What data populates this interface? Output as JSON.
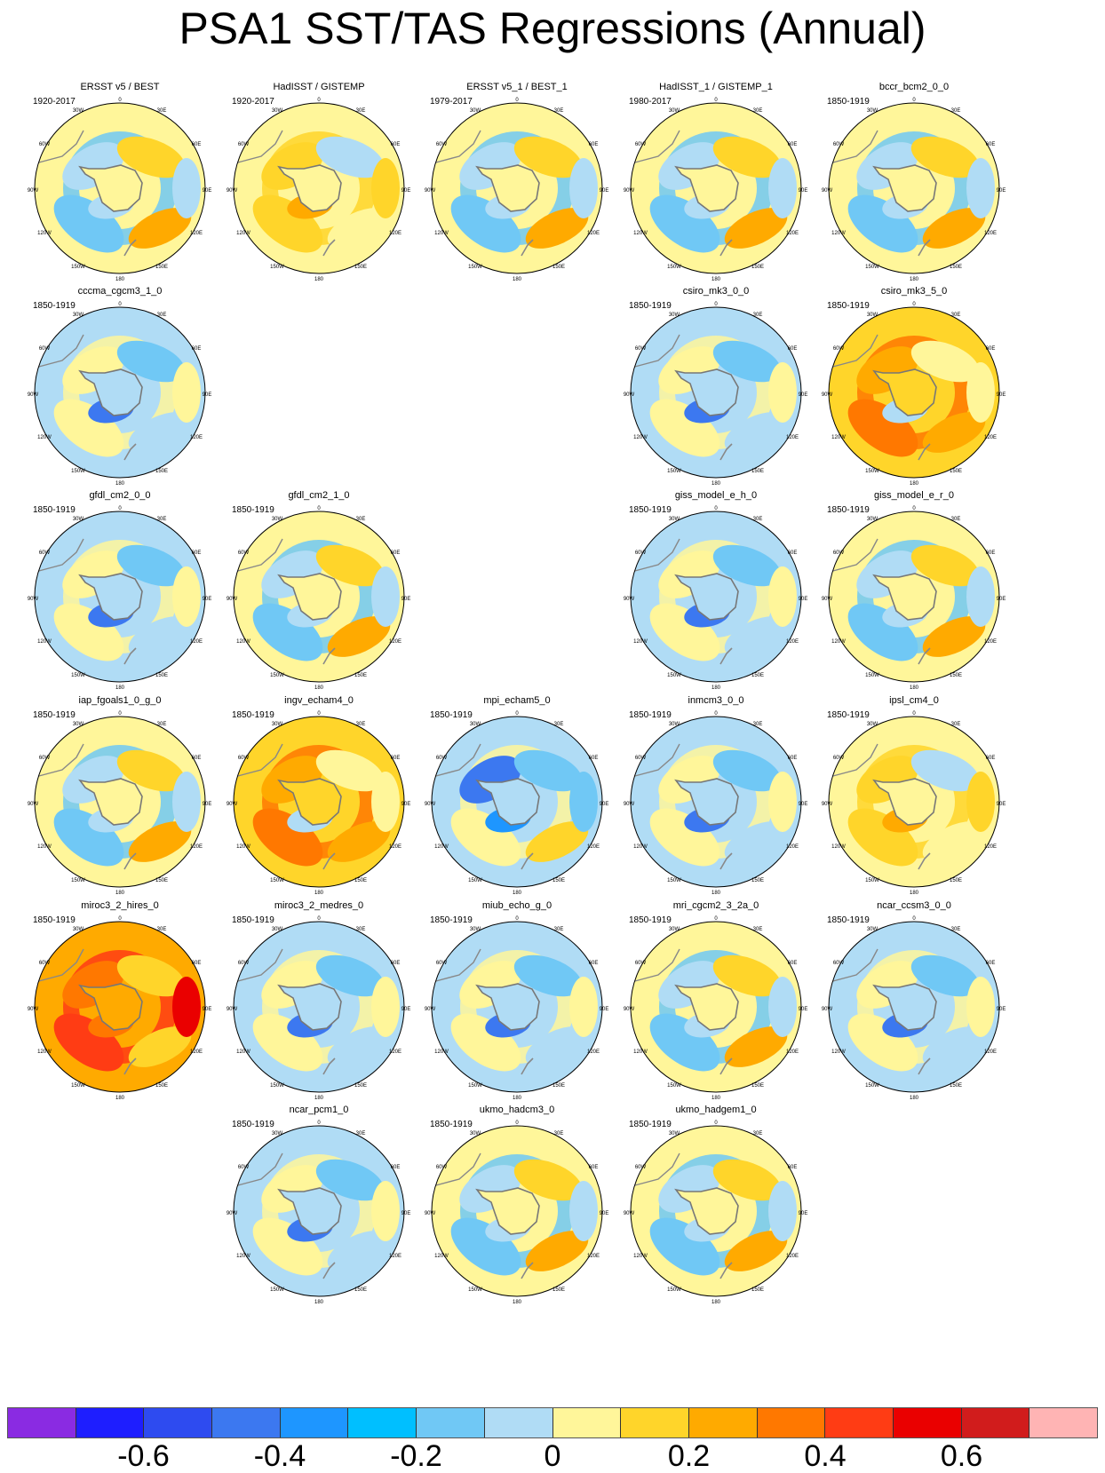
{
  "title": "PSA1 SST/TAS Regressions (Annual)",
  "map_labels": {
    "top": "0",
    "upper_left": "30W",
    "upper_right": "30E",
    "left_upper": "60W",
    "right_upper": "60E",
    "left": "90W",
    "right": "90E",
    "left_lower": "120W",
    "right_lower": "120E",
    "bottom_left": "150W",
    "bottom_right": "150E",
    "bottom": "180"
  },
  "panels": [
    {
      "name": "ERSST v5 / BEST",
      "period": "1920-2017",
      "row": 0,
      "col": 0,
      "tone": "mixed"
    },
    {
      "name": "HadISST / GISTEMP",
      "period": "1920-2017",
      "row": 0,
      "col": 1,
      "tone": "warm"
    },
    {
      "name": "ERSST v5_1 / BEST_1",
      "period": "1979-2017",
      "row": 0,
      "col": 2,
      "tone": "mixed"
    },
    {
      "name": "HadISST_1 / GISTEMP_1",
      "period": "1980-2017",
      "row": 0,
      "col": 3,
      "tone": "mixed"
    },
    {
      "name": "bccr_bcm2_0_0",
      "period": "1850-1919",
      "row": 0,
      "col": 4,
      "tone": "mixed"
    },
    {
      "name": "cccma_cgcm3_1_0",
      "period": "1850-1919",
      "row": 1,
      "col": 0,
      "tone": "cool"
    },
    {
      "name": "csiro_mk3_0_0",
      "period": "1850-1919",
      "row": 1,
      "col": 3,
      "tone": "cool"
    },
    {
      "name": "csiro_mk3_5_0",
      "period": "1850-1919",
      "row": 1,
      "col": 4,
      "tone": "hot"
    },
    {
      "name": "gfdl_cm2_0_0",
      "period": "1850-1919",
      "row": 2,
      "col": 0,
      "tone": "cool"
    },
    {
      "name": "gfdl_cm2_1_0",
      "period": "1850-1919",
      "row": 2,
      "col": 1,
      "tone": "mixed"
    },
    {
      "name": "giss_model_e_h_0",
      "period": "1850-1919",
      "row": 2,
      "col": 3,
      "tone": "cool"
    },
    {
      "name": "giss_model_e_r_0",
      "period": "1850-1919",
      "row": 2,
      "col": 4,
      "tone": "mixed"
    },
    {
      "name": "iap_fgoals1_0_g_0",
      "period": "1850-1919",
      "row": 3,
      "col": 0,
      "tone": "mixed"
    },
    {
      "name": "ingv_echam4_0",
      "period": "1850-1919",
      "row": 3,
      "col": 1,
      "tone": "hot"
    },
    {
      "name": "mpi_echam5_0",
      "period": "1850-1919",
      "row": 3,
      "col": 2,
      "tone": "blue"
    },
    {
      "name": "inmcm3_0_0",
      "period": "1850-1919",
      "row": 3,
      "col": 3,
      "tone": "cool"
    },
    {
      "name": "ipsl_cm4_0",
      "period": "1850-1919",
      "row": 3,
      "col": 4,
      "tone": "warm"
    },
    {
      "name": "miroc3_2_hires_0",
      "period": "1850-1919",
      "row": 4,
      "col": 0,
      "tone": "veryhot"
    },
    {
      "name": "miroc3_2_medres_0",
      "period": "1850-1919",
      "row": 4,
      "col": 1,
      "tone": "cool"
    },
    {
      "name": "miub_echo_g_0",
      "period": "1850-1919",
      "row": 4,
      "col": 2,
      "tone": "cool"
    },
    {
      "name": "mri_cgcm2_3_2a_0",
      "period": "1850-1919",
      "row": 4,
      "col": 3,
      "tone": "mixed"
    },
    {
      "name": "ncar_ccsm3_0_0",
      "period": "1850-1919",
      "row": 4,
      "col": 4,
      "tone": "cool"
    },
    {
      "name": "ncar_pcm1_0",
      "period": "1850-1919",
      "row": 5,
      "col": 1,
      "tone": "cool"
    },
    {
      "name": "ukmo_hadcm3_0",
      "period": "1850-1919",
      "row": 5,
      "col": 2,
      "tone": "mixed"
    },
    {
      "name": "ukmo_hadgem1_0",
      "period": "1850-1919",
      "row": 5,
      "col": 3,
      "tone": "mixed"
    }
  ],
  "colorbar": {
    "colors": [
      "#8a2be2",
      "#1e1eff",
      "#2e4bf0",
      "#3c78f0",
      "#1e96ff",
      "#00bfff",
      "#70c8f5",
      "#b0dcf5",
      "#fff69a",
      "#ffd52a",
      "#ffaa00",
      "#ff7800",
      "#ff3c14",
      "#ea0000",
      "#d11c1c",
      "#ffb4b4"
    ],
    "labels": [
      "-0.6",
      "-0.4",
      "-0.2",
      "0",
      "0.2",
      "0.4",
      "0.6"
    ],
    "label_box_index": [
      1,
      3,
      5,
      7,
      9,
      11,
      13
    ]
  },
  "tones": {
    "cool": {
      "base": "#b0dcf5",
      "spots": [
        "#fff69a",
        "#70c8f5",
        "#fff69a",
        "#3c78f0",
        "#b0dcf5",
        "#fff69a"
      ]
    },
    "mixed": {
      "base": "#fff69a",
      "spots": [
        "#b0dcf5",
        "#ffd52a",
        "#70c8f5",
        "#b0dcf5",
        "#ffaa00",
        "#b0dcf5"
      ]
    },
    "warm": {
      "base": "#fff69a",
      "spots": [
        "#ffd52a",
        "#b0dcf5",
        "#ffd52a",
        "#ffaa00",
        "#fff69a",
        "#ffd52a"
      ]
    },
    "hot": {
      "base": "#ffd52a",
      "spots": [
        "#ffaa00",
        "#fff69a",
        "#ff7800",
        "#b0dcf5",
        "#ffaa00",
        "#fff69a"
      ]
    },
    "veryhot": {
      "base": "#ffaa00",
      "spots": [
        "#ff7800",
        "#ffd52a",
        "#ff3c14",
        "#ff7800",
        "#ffd52a",
        "#ea0000"
      ]
    },
    "blue": {
      "base": "#b0dcf5",
      "spots": [
        "#3c78f0",
        "#70c8f5",
        "#fff69a",
        "#1e96ff",
        "#ffd52a",
        "#70c8f5"
      ]
    }
  }
}
